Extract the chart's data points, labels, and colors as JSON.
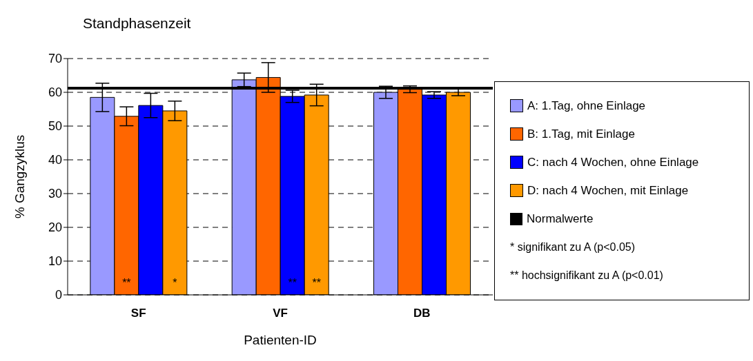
{
  "chart_data": {
    "type": "bar",
    "title": "Standphasenzeit",
    "xlabel": "Patienten-ID",
    "ylabel": "% Gangzyklus",
    "categories": [
      "SF",
      "VF",
      "DB"
    ],
    "series": [
      {
        "name": "A: 1.Tag, ohne Einlage",
        "color": "#9999ff",
        "values": [
          58.5,
          63.7,
          60.0
        ],
        "errors": [
          4.2,
          2.0,
          1.8
        ]
      },
      {
        "name": "B: 1.Tag, mit Einlage",
        "color": "#ff6600",
        "values": [
          52.9,
          64.4,
          60.9
        ],
        "errors": [
          2.8,
          4.4,
          1.0
        ],
        "value_labels": [
          "**",
          null,
          null
        ]
      },
      {
        "name": "C: nach 4 Wochen, ohne Einlage",
        "color": "#0000ff",
        "values": [
          56.1,
          58.8,
          59.2
        ],
        "errors": [
          3.6,
          1.8,
          1.0
        ],
        "value_labels": [
          null,
          "**",
          null
        ]
      },
      {
        "name": "D: nach 4 Wochen, mit Einlage",
        "color": "#ff9900",
        "values": [
          54.5,
          59.2,
          60.0
        ],
        "errors": [
          2.9,
          3.2,
          1.0
        ],
        "value_labels": [
          "*",
          "**",
          null
        ]
      }
    ],
    "ref_lines": [
      {
        "axis": "y",
        "value": 61.2,
        "label": "Normalwerte",
        "color": "#000000"
      }
    ],
    "annotations": [
      "* signifikant zu A (p<0.05)",
      "** hochsignifikant zu A (p<0.01)"
    ],
    "ylim": [
      0,
      70
    ],
    "yticks": [
      0,
      10,
      20,
      30,
      40,
      50,
      60,
      70
    ],
    "grid": "y",
    "legend": "right"
  }
}
